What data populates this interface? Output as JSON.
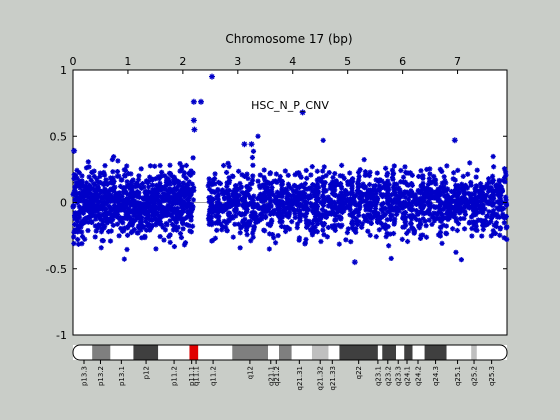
{
  "chart_data": {
    "type": "scatter",
    "title": "Chromosome 17 (bp)",
    "xlabel": "",
    "ylabel": "",
    "xlim": [
      0,
      7.9
    ],
    "ylim": [
      -1,
      1
    ],
    "x_ticks": [
      "0",
      "1",
      "2",
      "3",
      "4",
      "5",
      "6",
      "7"
    ],
    "y_ticks": [
      "-1",
      "-0.5",
      "0",
      "0.5",
      "1"
    ],
    "annotation": "HSC_N_P_CNV",
    "marker_color": "#0000c8",
    "baseline_color": "#a0a0a0",
    "density_bands": [
      {
        "x0": 0.0,
        "x1": 2.2,
        "lo": -0.22,
        "hi": 0.22,
        "n": 900
      },
      {
        "x0": 2.45,
        "x1": 7.9,
        "lo": -0.22,
        "hi": 0.22,
        "n": 1600
      }
    ],
    "notable_points": [
      {
        "x": 0.02,
        "y": 0.39
      },
      {
        "x": 2.2,
        "y": 0.76
      },
      {
        "x": 2.33,
        "y": 0.76
      },
      {
        "x": 2.53,
        "y": 0.95
      },
      {
        "x": 4.18,
        "y": 0.68
      },
      {
        "x": 6.95,
        "y": 0.47
      },
      {
        "x": 2.2,
        "y": 0.62
      },
      {
        "x": 2.21,
        "y": 0.55
      },
      {
        "x": 5.13,
        "y": -0.45
      },
      {
        "x": 3.12,
        "y": 0.44
      },
      {
        "x": 3.25,
        "y": 0.44
      }
    ],
    "ideogram": {
      "segments": [
        {
          "x0": 0.0,
          "x1": 0.35,
          "fill": "#ffffff"
        },
        {
          "x0": 0.35,
          "x1": 0.68,
          "fill": "#7f7f7f"
        },
        {
          "x0": 0.68,
          "x1": 1.1,
          "fill": "#ffffff"
        },
        {
          "x0": 1.1,
          "x1": 1.55,
          "fill": "#3f3f3f"
        },
        {
          "x0": 1.55,
          "x1": 2.12,
          "fill": "#ffffff"
        },
        {
          "x0": 2.12,
          "x1": 2.28,
          "fill": "#e00000"
        },
        {
          "x0": 2.28,
          "x1": 2.9,
          "fill": "#ffffff"
        },
        {
          "x0": 2.9,
          "x1": 3.55,
          "fill": "#7f7f7f"
        },
        {
          "x0": 3.55,
          "x1": 3.75,
          "fill": "#ffffff"
        },
        {
          "x0": 3.75,
          "x1": 3.98,
          "fill": "#7f7f7f"
        },
        {
          "x0": 3.98,
          "x1": 4.35,
          "fill": "#ffffff"
        },
        {
          "x0": 4.35,
          "x1": 4.65,
          "fill": "#bfbfbf"
        },
        {
          "x0": 4.65,
          "x1": 4.85,
          "fill": "#ffffff"
        },
        {
          "x0": 4.85,
          "x1": 5.55,
          "fill": "#3f3f3f"
        },
        {
          "x0": 5.55,
          "x1": 5.63,
          "fill": "#ffffff"
        },
        {
          "x0": 5.63,
          "x1": 5.88,
          "fill": "#3f3f3f"
        },
        {
          "x0": 5.88,
          "x1": 6.03,
          "fill": "#ffffff"
        },
        {
          "x0": 6.03,
          "x1": 6.18,
          "fill": "#3f3f3f"
        },
        {
          "x0": 6.18,
          "x1": 6.4,
          "fill": "#ffffff"
        },
        {
          "x0": 6.4,
          "x1": 6.8,
          "fill": "#3f3f3f"
        },
        {
          "x0": 6.8,
          "x1": 7.25,
          "fill": "#ffffff"
        },
        {
          "x0": 7.25,
          "x1": 7.35,
          "fill": "#bfbfbf"
        },
        {
          "x0": 7.35,
          "x1": 7.9,
          "fill": "#ffffff"
        }
      ],
      "bands": [
        {
          "label": "p13.3",
          "x": 0.2
        },
        {
          "label": "p13.2",
          "x": 0.5
        },
        {
          "label": "p13.1",
          "x": 0.88
        },
        {
          "label": "p12",
          "x": 1.33
        },
        {
          "label": "p11.2",
          "x": 1.84
        },
        {
          "label": "p11.1",
          "x": 2.16
        },
        {
          "label": "q11.1",
          "x": 2.24
        },
        {
          "label": "q11.2",
          "x": 2.55
        },
        {
          "label": "q12",
          "x": 3.22
        },
        {
          "label": "q21.1",
          "x": 3.6
        },
        {
          "label": "q21.2",
          "x": 3.7
        },
        {
          "label": "q21.31",
          "x": 4.12
        },
        {
          "label": "q21.32",
          "x": 4.5
        },
        {
          "label": "q21.33",
          "x": 4.72
        },
        {
          "label": "q22",
          "x": 5.2
        },
        {
          "label": "q23.1",
          "x": 5.55
        },
        {
          "label": "q23.2",
          "x": 5.73
        },
        {
          "label": "q23.3",
          "x": 5.92
        },
        {
          "label": "q24.1",
          "x": 6.08
        },
        {
          "label": "q24.2",
          "x": 6.28
        },
        {
          "label": "q24.3",
          "x": 6.6
        },
        {
          "label": "q25.1",
          "x": 7.0
        },
        {
          "label": "q25.2",
          "x": 7.3
        },
        {
          "label": "q25.3",
          "x": 7.62
        }
      ]
    }
  }
}
